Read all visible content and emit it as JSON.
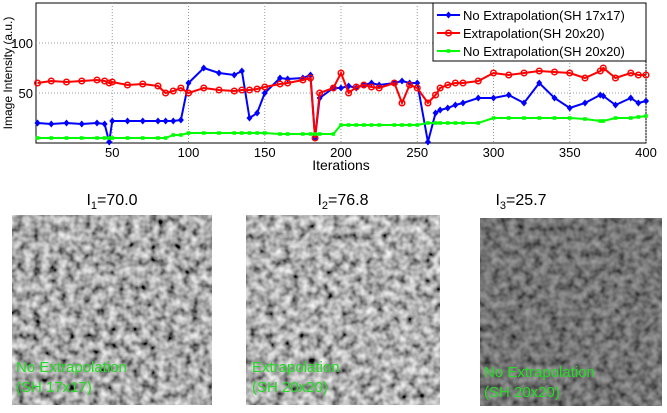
{
  "chart_data": {
    "type": "line",
    "xlabel": "Iterations",
    "ylabel": "Image Intensity (a.u.)",
    "x": [
      1,
      10,
      20,
      30,
      40,
      45,
      48,
      50,
      60,
      70,
      80,
      85,
      90,
      95,
      100,
      110,
      120,
      130,
      135,
      140,
      145,
      150,
      160,
      165,
      175,
      180,
      183,
      186,
      195,
      200,
      205,
      210,
      215,
      220,
      225,
      235,
      240,
      245,
      250,
      257,
      262,
      265,
      270,
      275,
      280,
      290,
      300,
      310,
      320,
      330,
      340,
      350,
      360,
      370,
      372,
      380,
      390,
      395,
      400
    ],
    "series": [
      {
        "name": "No Extrapolation(SH 17x17)",
        "color": "#0000ff",
        "marker": "diamond",
        "values": [
          20,
          19,
          20,
          19,
          20,
          19,
          1,
          22,
          22,
          22,
          22,
          22,
          22,
          23,
          60,
          75,
          70,
          68,
          72,
          25,
          30,
          50,
          65,
          64,
          65,
          68,
          5,
          45,
          55,
          55,
          57,
          55,
          58,
          60,
          58,
          60,
          62,
          60,
          60,
          1,
          30,
          33,
          35,
          38,
          40,
          45,
          45,
          48,
          40,
          60,
          45,
          35,
          40,
          48,
          47,
          38,
          45,
          40,
          42
        ]
      },
      {
        "name": "Extrapolation(SH 20x20)",
        "color": "#ff0000",
        "marker": "circle",
        "values": [
          60,
          62,
          61,
          62,
          63,
          62,
          60,
          61,
          58,
          59,
          57,
          50,
          52,
          55,
          50,
          55,
          53,
          52,
          53,
          53,
          54,
          56,
          59,
          60,
          63,
          65,
          5,
          50,
          55,
          70,
          50,
          56,
          58,
          56,
          55,
          60,
          40,
          58,
          55,
          40,
          48,
          55,
          58,
          60,
          60,
          62,
          70,
          68,
          70,
          72,
          71,
          70,
          65,
          72,
          75,
          65,
          70,
          68,
          68
        ]
      },
      {
        "name": "No Extrapolation(SH 20x20)",
        "color": "#00ff00",
        "marker": "square",
        "values": [
          5,
          5,
          5,
          5,
          5,
          5,
          5,
          5,
          5,
          5,
          5,
          5,
          8,
          8,
          10,
          10,
          10,
          10,
          10,
          10,
          10,
          10,
          9,
          9,
          9,
          9,
          9,
          9,
          9,
          18,
          18,
          18,
          18,
          18,
          18,
          18,
          18,
          18,
          18,
          20,
          20,
          20,
          20,
          20,
          20,
          20,
          25,
          25,
          25,
          25,
          25,
          25,
          24,
          22,
          22,
          25,
          25,
          26,
          27
        ]
      }
    ],
    "xlim": [
      0,
      400
    ],
    "xticks": [
      50,
      100,
      150,
      200,
      250,
      300,
      350,
      400
    ],
    "ylim": [
      0,
      140
    ],
    "yticks": [
      50,
      100
    ],
    "grid": true,
    "legend": "upper right"
  },
  "images": [
    {
      "symbol": "I",
      "subscript": "1",
      "value_text": "=70.0",
      "overlay": [
        "No Extrapolation",
        "(SH 17x17)"
      ]
    },
    {
      "symbol": "I",
      "subscript": "2",
      "value_text": "=76.8",
      "overlay": [
        "Extrapolation",
        "(SH 20x20)"
      ]
    },
    {
      "symbol": "I",
      "subscript": "3",
      "value_text": "=25.7",
      "overlay": [
        "No Extrapolation",
        "(SH 20x20)"
      ]
    }
  ]
}
